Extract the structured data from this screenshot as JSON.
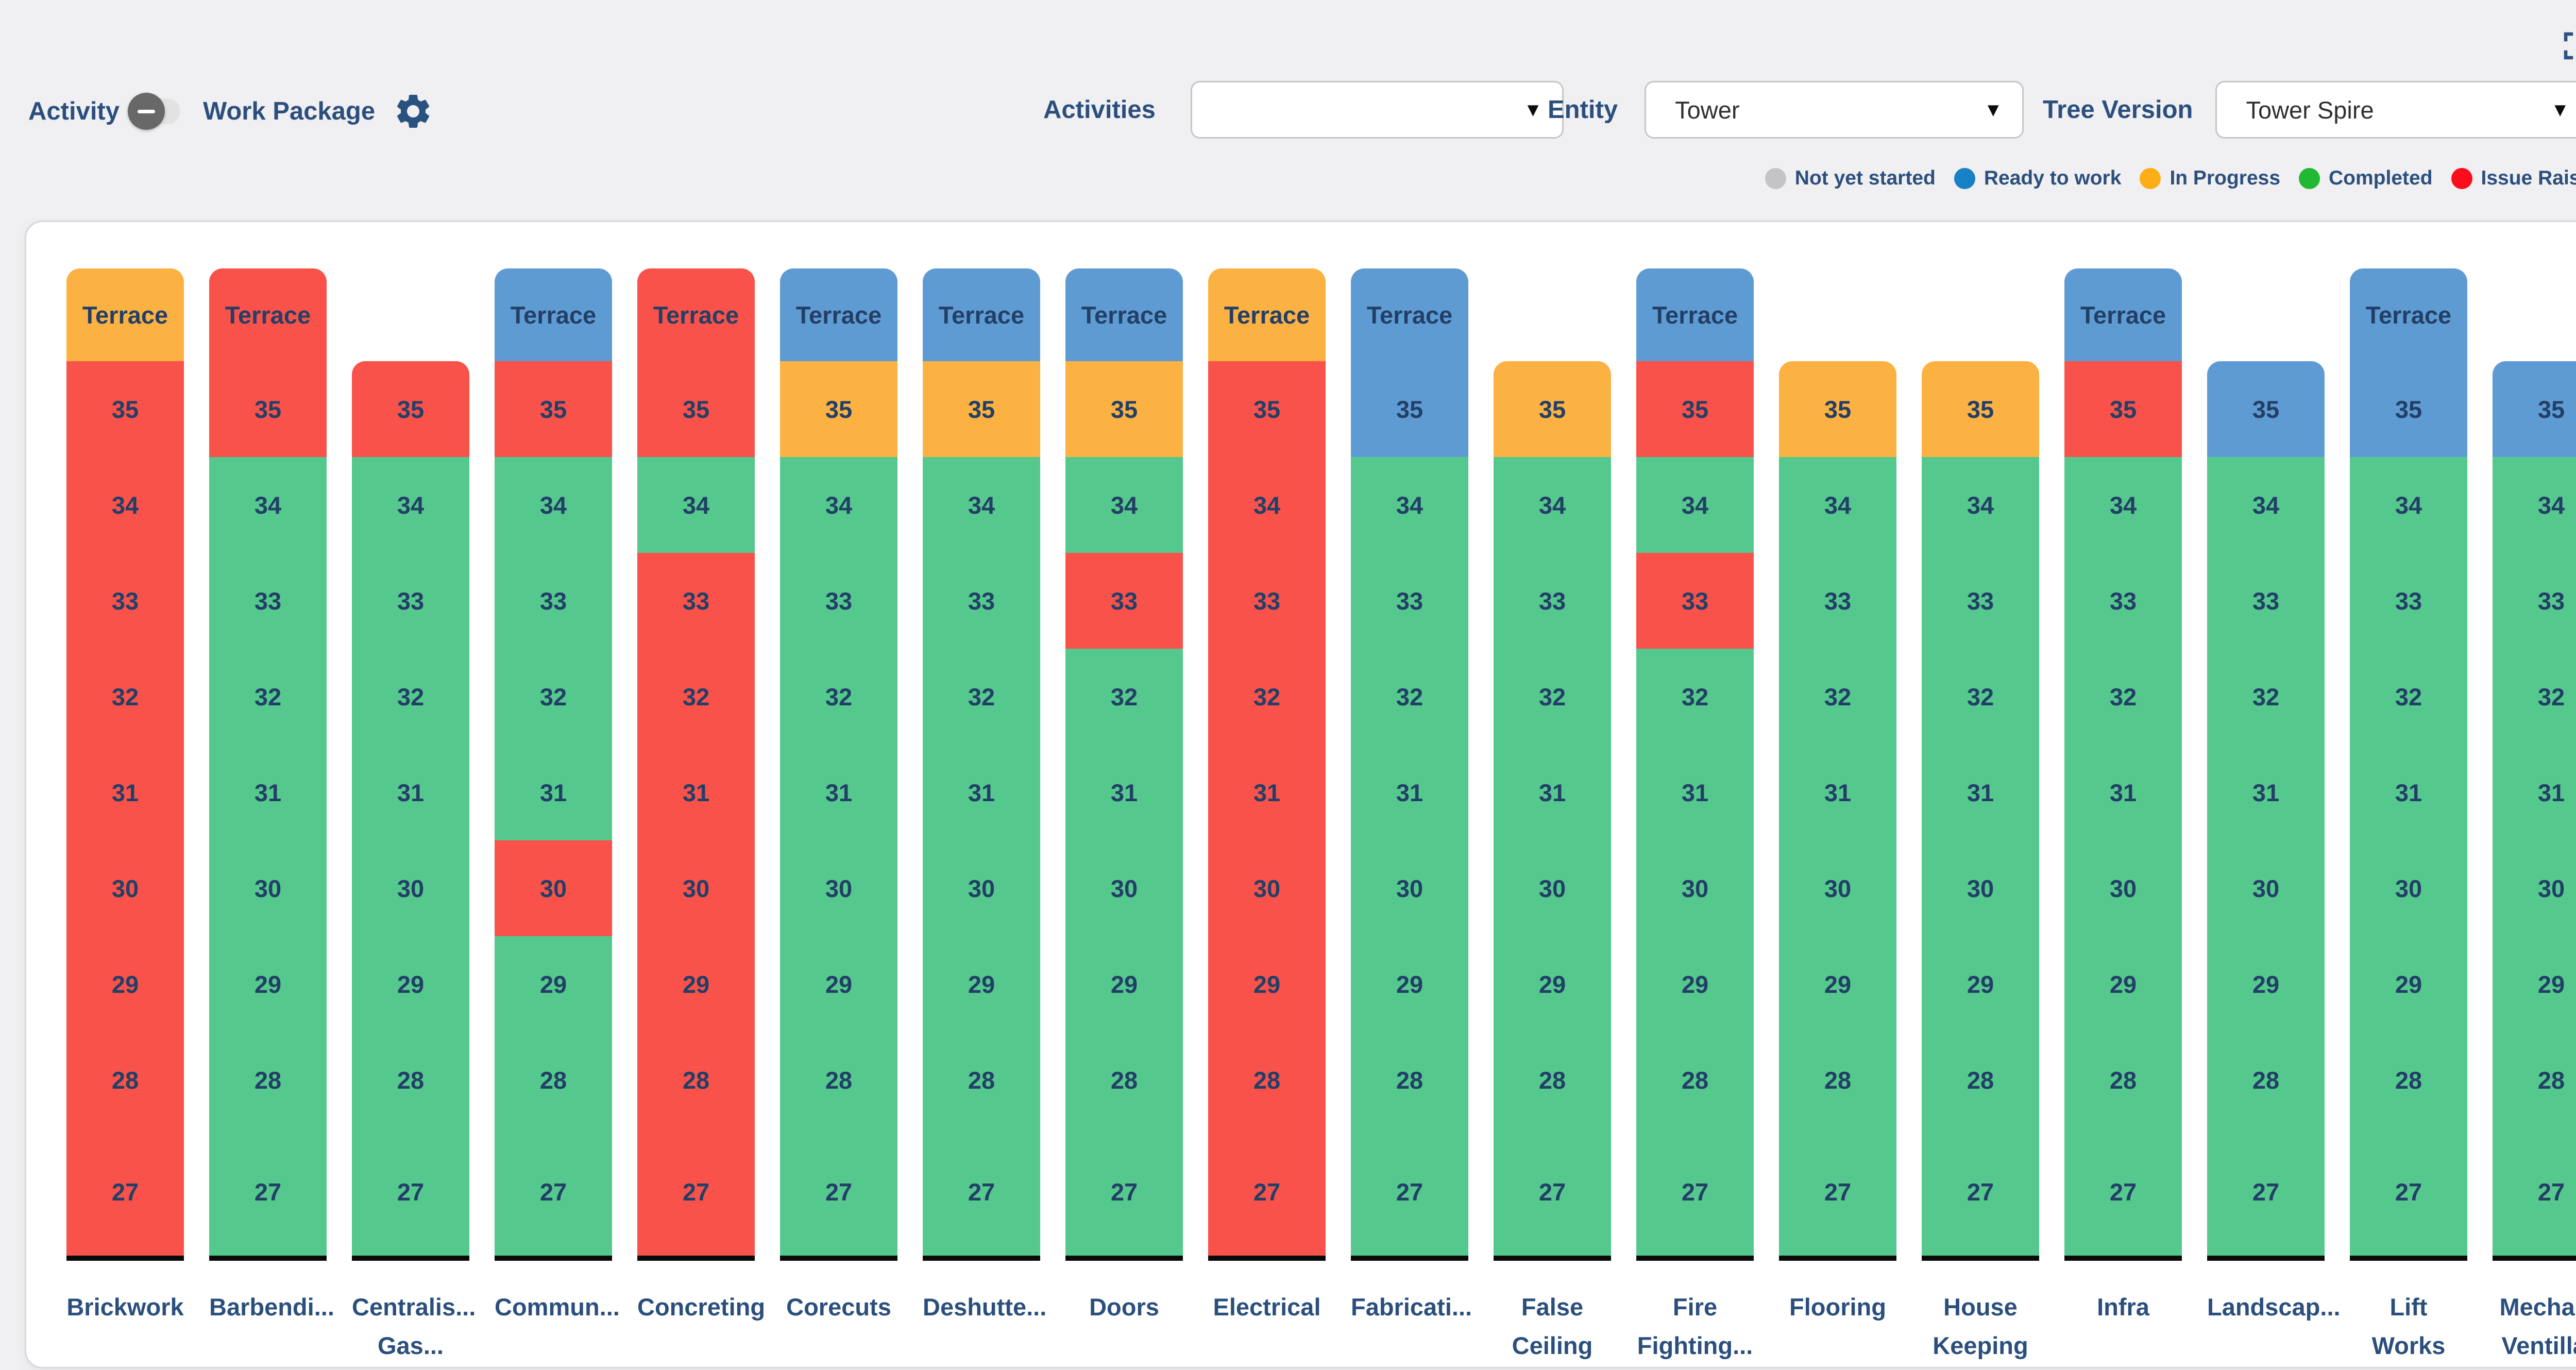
{
  "header": {
    "activity_label": "Activity",
    "work_package_label": "Work Package",
    "filters": {
      "activities": {
        "label": "Activities",
        "value": ""
      },
      "entity": {
        "label": "Entity",
        "value": "Tower"
      },
      "tree_version": {
        "label": "Tree Version",
        "value": "Tower Spire"
      }
    }
  },
  "legend": [
    {
      "status": "not_yet_started",
      "label": "Not yet started",
      "color": "#c4c4c4"
    },
    {
      "status": "ready",
      "label": "Ready to work",
      "color": "#1880c4"
    },
    {
      "status": "progress",
      "label": "In Progress",
      "color": "#fcae17"
    },
    {
      "status": "done",
      "label": "Completed",
      "color": "#21b834"
    },
    {
      "status": "issue",
      "label": "Issue Raised",
      "color": "#fb0d1c"
    }
  ],
  "chart_data": {
    "type": "heatmap",
    "description": "Floor-by-work-package status matrix; each column is a work package, each cell a floor colored by status",
    "floors": [
      "Terrace",
      "35",
      "34",
      "33",
      "32",
      "31",
      "30",
      "29",
      "28",
      "27"
    ],
    "status_cell_colors": {
      "ready": "#5f9bd3",
      "progress": "#fcb143",
      "done": "#55c88e",
      "issue": "#f8524b"
    },
    "columns": [
      {
        "label": "Brickwork",
        "cells": [
          "progress",
          "issue",
          "issue",
          "issue",
          "issue",
          "issue",
          "issue",
          "issue",
          "issue",
          "issue"
        ]
      },
      {
        "label": "Barbendi...",
        "cells": [
          "issue",
          "issue",
          "done",
          "done",
          "done",
          "done",
          "done",
          "done",
          "done",
          "done"
        ]
      },
      {
        "label": "Centralis...\nGas...",
        "cells": [
          null,
          "issue",
          "done",
          "done",
          "done",
          "done",
          "done",
          "done",
          "done",
          "done"
        ]
      },
      {
        "label": "Commun...",
        "cells": [
          "ready",
          "issue",
          "done",
          "done",
          "done",
          "done",
          "issue",
          "done",
          "done",
          "done"
        ]
      },
      {
        "label": "Concreting",
        "cells": [
          "issue",
          "issue",
          "done",
          "issue",
          "issue",
          "issue",
          "issue",
          "issue",
          "issue",
          "issue"
        ]
      },
      {
        "label": "Corecuts",
        "cells": [
          "ready",
          "progress",
          "done",
          "done",
          "done",
          "done",
          "done",
          "done",
          "done",
          "done"
        ]
      },
      {
        "label": "Deshutte...",
        "cells": [
          "ready",
          "progress",
          "done",
          "done",
          "done",
          "done",
          "done",
          "done",
          "done",
          "done"
        ]
      },
      {
        "label": "Doors",
        "cells": [
          "ready",
          "progress",
          "done",
          "issue",
          "done",
          "done",
          "done",
          "done",
          "done",
          "done"
        ]
      },
      {
        "label": "Electrical",
        "cells": [
          "progress",
          "issue",
          "issue",
          "issue",
          "issue",
          "issue",
          "issue",
          "issue",
          "issue",
          "issue"
        ]
      },
      {
        "label": "Fabricati...",
        "cells": [
          "ready",
          "ready",
          "done",
          "done",
          "done",
          "done",
          "done",
          "done",
          "done",
          "done"
        ]
      },
      {
        "label": "False\nCeiling",
        "cells": [
          null,
          "progress",
          "done",
          "done",
          "done",
          "done",
          "done",
          "done",
          "done",
          "done"
        ]
      },
      {
        "label": "Fire\nFighting...",
        "cells": [
          "ready",
          "issue",
          "done",
          "issue",
          "done",
          "done",
          "done",
          "done",
          "done",
          "done"
        ]
      },
      {
        "label": "Flooring",
        "cells": [
          null,
          "progress",
          "done",
          "done",
          "done",
          "done",
          "done",
          "done",
          "done",
          "done"
        ]
      },
      {
        "label": "House\nKeeping",
        "cells": [
          null,
          "progress",
          "done",
          "done",
          "done",
          "done",
          "done",
          "done",
          "done",
          "done"
        ]
      },
      {
        "label": "Infra",
        "cells": [
          "ready",
          "issue",
          "done",
          "done",
          "done",
          "done",
          "done",
          "done",
          "done",
          "done"
        ]
      },
      {
        "label": "Landscap...",
        "cells": [
          null,
          "ready",
          "done",
          "done",
          "done",
          "done",
          "done",
          "done",
          "done",
          "done"
        ]
      },
      {
        "label": "Lift Works",
        "cells": [
          "ready",
          "ready",
          "done",
          "done",
          "done",
          "done",
          "done",
          "done",
          "done",
          "done"
        ]
      },
      {
        "label": "Mechani.\nVentillati",
        "cells": [
          null,
          "ready",
          "done",
          "done",
          "done",
          "done",
          "done",
          "done",
          "done",
          "done"
        ]
      }
    ]
  }
}
